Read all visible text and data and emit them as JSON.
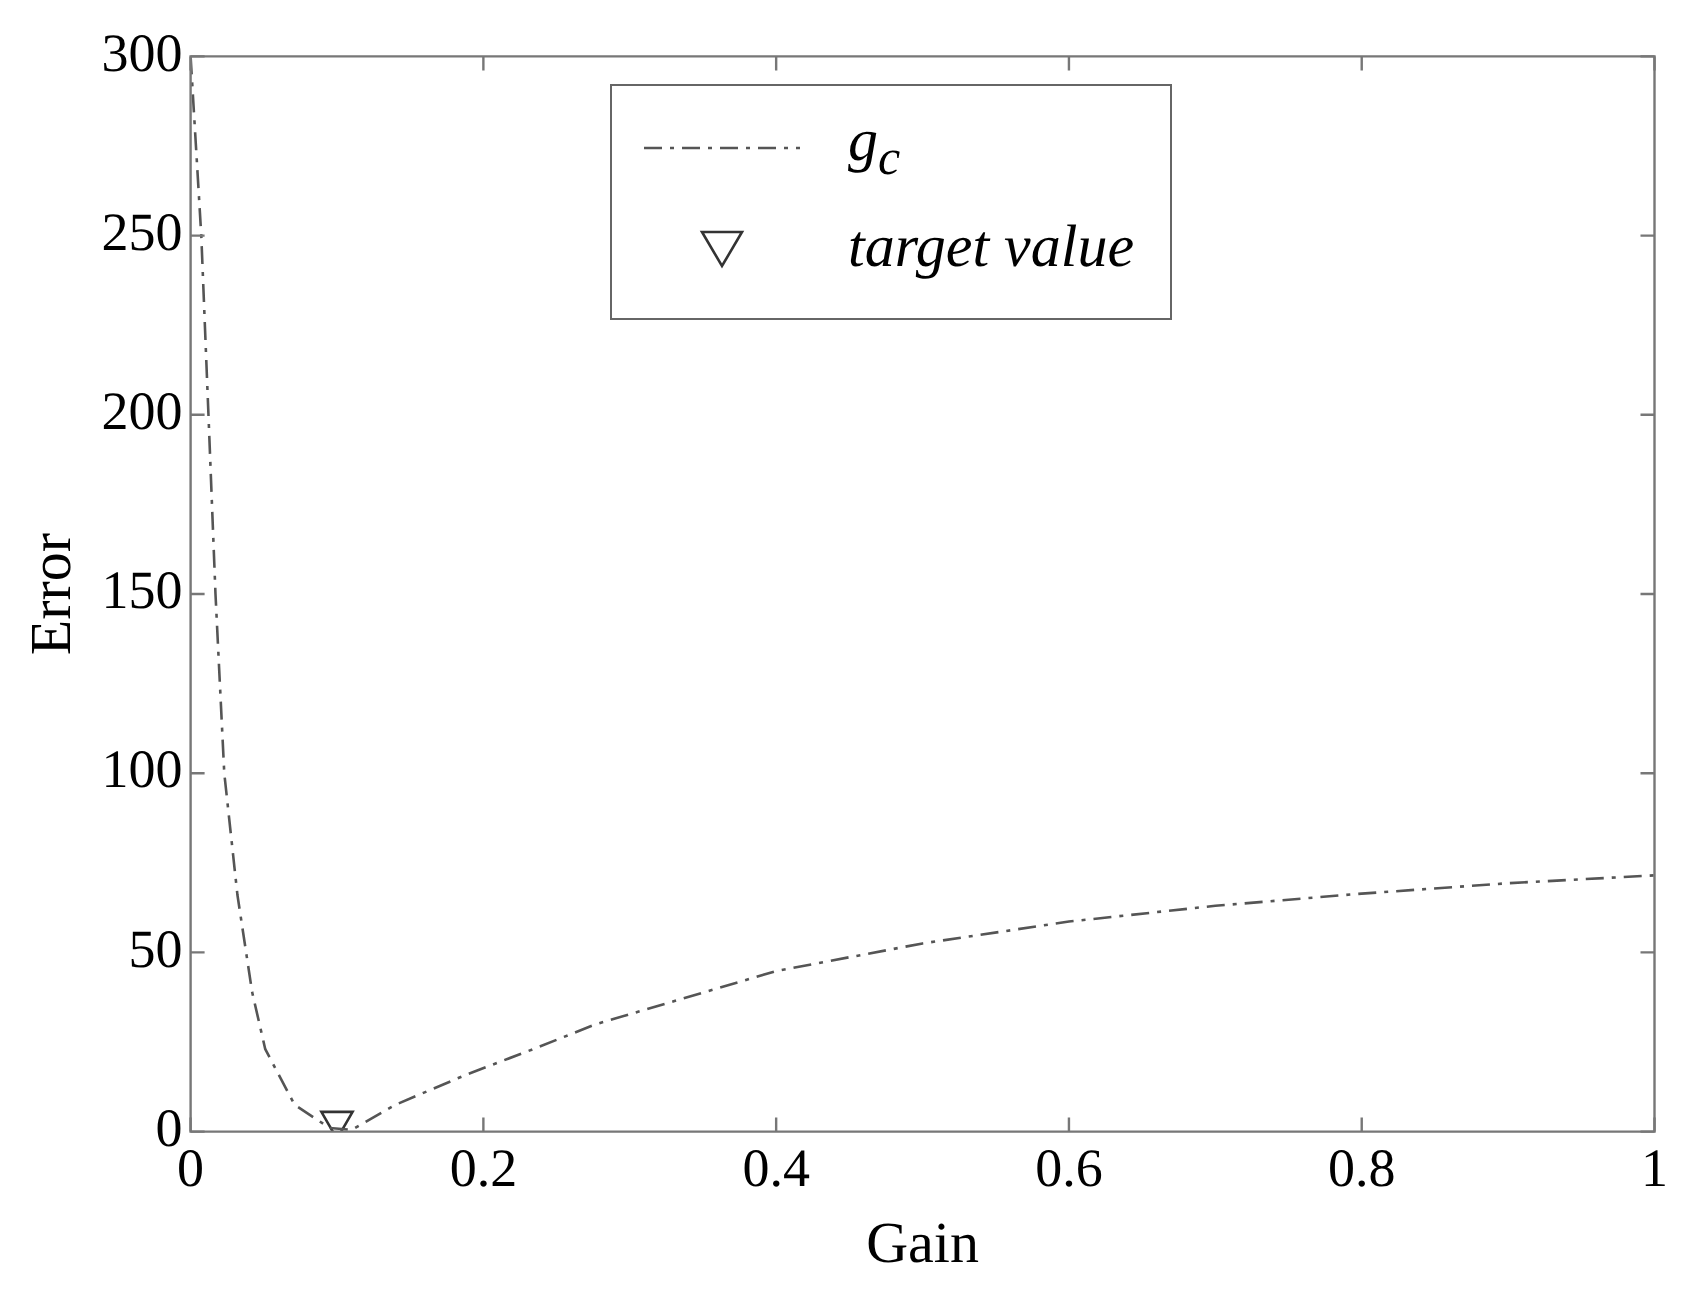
{
  "chart_data": {
    "type": "line",
    "xlabel": "Gain",
    "ylabel": "Error",
    "xlim": [
      0,
      1
    ],
    "ylim": [
      0,
      300
    ],
    "xticks": [
      0,
      0.2,
      0.4,
      0.6,
      0.8,
      1
    ],
    "yticks": [
      0,
      50,
      100,
      150,
      200,
      250,
      300
    ],
    "grid": false,
    "legend": "top",
    "series": [
      {
        "name": "g$_{c}$",
        "color": "#555555",
        "line_style": "dashed",
        "marker": "none",
        "x": [
          0,
          0.0073,
          0.0122,
          0.017,
          0.023,
          0.032,
          0.042,
          0.051,
          0.071,
          0.095,
          0.11,
          0.14,
          0.189,
          0.234,
          0.277,
          0.4,
          0.5,
          0.6,
          0.7,
          0.8,
          0.9,
          1
        ],
        "values": [
          300,
          250,
          200,
          150,
          100,
          66,
          39,
          23,
          7.5,
          1,
          0.5,
          7.5,
          16,
          23,
          30,
          44.8,
          52.5,
          58.6,
          63,
          66.4,
          69.3,
          71.5
        ]
      },
      {
        "name": "target value",
        "type": "scatter",
        "color": "#333333",
        "marker": "triangle",
        "x": [
          0.1
        ],
        "values": [
          3
        ]
      }
    ]
  }
}
